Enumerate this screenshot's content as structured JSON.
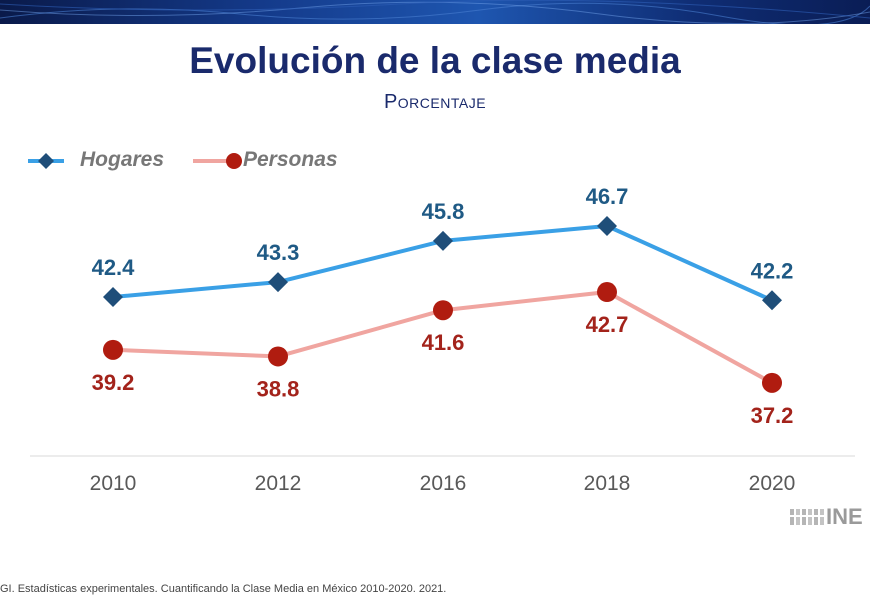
{
  "slide": {
    "title": "Evolución de la clase media",
    "subtitle": "Porcentaje",
    "source": "GI. Estadísticas experimentales. Cuantificando la Clase Media en México 2010-2020. 2021.",
    "logo_text": "INE"
  },
  "chart_data": {
    "type": "line",
    "title": "Evolución de la clase media",
    "subtitle": "Porcentaje",
    "xlabel": "",
    "ylabel": "",
    "categories": [
      "2010",
      "2012",
      "2016",
      "2018",
      "2020"
    ],
    "legend_position": "top-left",
    "series": [
      {
        "name": "Hogares",
        "values": [
          42.4,
          43.3,
          45.8,
          46.7,
          42.2
        ],
        "color": "#3aa0e6",
        "marker": "diamond",
        "marker_color": "#1f4e79",
        "label_color": "#1f5a85",
        "label_position": "above"
      },
      {
        "name": "Personas",
        "values": [
          39.2,
          38.8,
          41.6,
          42.7,
          37.2
        ],
        "color": "#f0a5a0",
        "marker": "circle",
        "marker_color": "#b01c10",
        "label_color": "#a3231b",
        "label_position": "below"
      }
    ]
  }
}
